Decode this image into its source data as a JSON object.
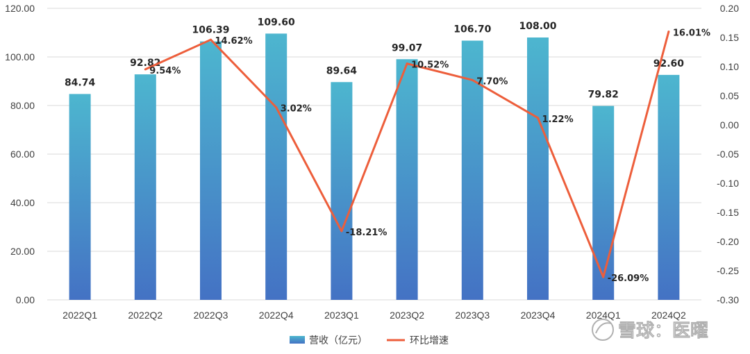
{
  "chart_data": {
    "type": "bar",
    "categories": [
      "2022Q1",
      "2022Q2",
      "2022Q3",
      "2022Q4",
      "2023Q1",
      "2023Q2",
      "2023Q3",
      "2023Q4",
      "2024Q1",
      "2024Q2"
    ],
    "series": [
      {
        "name": "营收（亿元）",
        "type": "bar",
        "axis": "left",
        "values": [
          84.74,
          92.82,
          106.39,
          109.6,
          89.64,
          99.07,
          106.7,
          108.0,
          79.82,
          92.6
        ],
        "labels": [
          "84.74",
          "92.82",
          "106.39",
          "109.60",
          "89.64",
          "99.07",
          "106.70",
          "108.00",
          "79.82",
          "92.60"
        ]
      },
      {
        "name": "环比增速",
        "type": "line",
        "axis": "right",
        "values": [
          null,
          0.0954,
          0.1462,
          0.0302,
          -0.1821,
          0.1052,
          0.077,
          0.0122,
          -0.2609,
          0.1601
        ],
        "labels": [
          "",
          "9.54%",
          "14.62%",
          "3.02%",
          "-18.21%",
          "10.52%",
          "7.70%",
          "1.22%",
          "-26.09%",
          "16.01%"
        ]
      }
    ],
    "y_left": {
      "range": [
        0,
        120
      ],
      "ticks": [
        0,
        20,
        40,
        60,
        80,
        100,
        120
      ],
      "tick_labels": [
        "0.00",
        "20.00",
        "40.00",
        "60.00",
        "80.00",
        "100.00",
        "120.00"
      ]
    },
    "y_right": {
      "range": [
        -0.3,
        0.2
      ],
      "ticks": [
        -0.3,
        -0.25,
        -0.2,
        -0.15,
        -0.1,
        -0.05,
        0,
        0.05,
        0.1,
        0.15,
        0.2
      ],
      "tick_labels": [
        "-0.30",
        "-0.25",
        "-0.20",
        "-0.15",
        "-0.10",
        "-0.05",
        "0.00",
        "0.05",
        "0.10",
        "0.15",
        "0.20"
      ]
    },
    "grid": true,
    "legend_position": "bottom-center"
  },
  "colors": {
    "bar_top": "#4db6cf",
    "bar_bottom": "#4472c4",
    "line": "#ed5e3b",
    "grid": "#d9d9d9"
  },
  "watermark": "雪球：医曜"
}
